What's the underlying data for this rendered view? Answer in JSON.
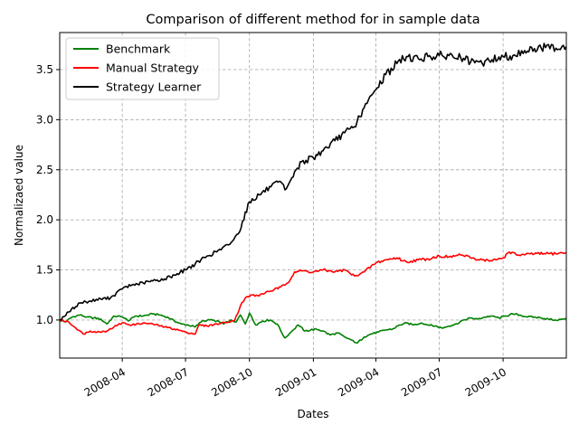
{
  "chart_data": {
    "type": "line",
    "title": "Comparison of different method for in sample data",
    "xlabel": "Dates",
    "ylabel": "Normalizaed value",
    "xlim": [
      "2008-01-02",
      "2009-12-31"
    ],
    "ylim": [
      0.62,
      3.87
    ],
    "x_ticks": [
      "2008-04",
      "2008-07",
      "2008-10",
      "2009-01",
      "2009-04",
      "2009-07",
      "2009-10"
    ],
    "y_ticks": [
      "1.0",
      "1.5",
      "2.0",
      "2.5",
      "3.0",
      "3.5"
    ],
    "grid": true,
    "legend_position": "upper-left",
    "series": [
      {
        "name": "Benchmark",
        "color": "#008000",
        "points": [
          [
            "2008-01-02",
            1.0
          ],
          [
            "2008-01-10",
            0.98
          ],
          [
            "2008-01-20",
            1.03
          ],
          [
            "2008-01-31",
            1.05
          ],
          [
            "2008-02-10",
            1.03
          ],
          [
            "2008-02-20",
            1.02
          ],
          [
            "2008-03-01",
            1.01
          ],
          [
            "2008-03-10",
            0.96
          ],
          [
            "2008-03-20",
            1.04
          ],
          [
            "2008-04-01",
            1.03
          ],
          [
            "2008-04-10",
            0.99
          ],
          [
            "2008-04-20",
            1.04
          ],
          [
            "2008-05-01",
            1.04
          ],
          [
            "2008-05-15",
            1.06
          ],
          [
            "2008-05-25",
            1.05
          ],
          [
            "2008-06-05",
            1.03
          ],
          [
            "2008-06-15",
            0.99
          ],
          [
            "2008-06-25",
            0.96
          ],
          [
            "2008-07-05",
            0.95
          ],
          [
            "2008-07-15",
            0.93
          ],
          [
            "2008-07-25",
            0.99
          ],
          [
            "2008-08-05",
            1.0
          ],
          [
            "2008-08-15",
            0.99
          ],
          [
            "2008-08-25",
            0.96
          ],
          [
            "2008-09-05",
            1.0
          ],
          [
            "2008-09-12",
            0.98
          ],
          [
            "2008-09-18",
            1.05
          ],
          [
            "2008-09-25",
            0.96
          ],
          [
            "2008-10-01",
            1.07
          ],
          [
            "2008-10-10",
            0.95
          ],
          [
            "2008-10-20",
            0.99
          ],
          [
            "2008-10-31",
            1.0
          ],
          [
            "2008-11-10",
            0.96
          ],
          [
            "2008-11-21",
            0.82
          ],
          [
            "2008-11-30",
            0.88
          ],
          [
            "2008-12-10",
            0.95
          ],
          [
            "2008-12-20",
            0.89
          ],
          [
            "2009-01-05",
            0.91
          ],
          [
            "2009-01-15",
            0.89
          ],
          [
            "2009-01-25",
            0.85
          ],
          [
            "2009-02-05",
            0.87
          ],
          [
            "2009-02-15",
            0.83
          ],
          [
            "2009-02-25",
            0.8
          ],
          [
            "2009-03-05",
            0.77
          ],
          [
            "2009-03-15",
            0.83
          ],
          [
            "2009-03-25",
            0.86
          ],
          [
            "2009-04-05",
            0.88
          ],
          [
            "2009-04-15",
            0.9
          ],
          [
            "2009-04-25",
            0.91
          ],
          [
            "2009-05-05",
            0.95
          ],
          [
            "2009-05-15",
            0.97
          ],
          [
            "2009-05-25",
            0.95
          ],
          [
            "2009-06-05",
            0.97
          ],
          [
            "2009-06-15",
            0.95
          ],
          [
            "2009-06-25",
            0.94
          ],
          [
            "2009-07-05",
            0.92
          ],
          [
            "2009-07-15",
            0.94
          ],
          [
            "2009-07-25",
            0.96
          ],
          [
            "2009-08-05",
            1.0
          ],
          [
            "2009-08-15",
            1.02
          ],
          [
            "2009-08-25",
            1.01
          ],
          [
            "2009-09-05",
            1.03
          ],
          [
            "2009-09-15",
            1.04
          ],
          [
            "2009-09-25",
            1.02
          ],
          [
            "2009-10-05",
            1.04
          ],
          [
            "2009-10-15",
            1.06
          ],
          [
            "2009-10-25",
            1.05
          ],
          [
            "2009-11-05",
            1.03
          ],
          [
            "2009-11-15",
            1.03
          ],
          [
            "2009-11-25",
            1.02
          ],
          [
            "2009-12-05",
            1.01
          ],
          [
            "2009-12-15",
            1.0
          ],
          [
            "2009-12-31",
            1.01
          ]
        ]
      },
      {
        "name": "Manual Strategy",
        "color": "#ff0000",
        "points": [
          [
            "2008-01-02",
            1.0
          ],
          [
            "2008-01-15",
            0.98
          ],
          [
            "2008-01-25",
            0.92
          ],
          [
            "2008-02-05",
            0.86
          ],
          [
            "2008-02-15",
            0.89
          ],
          [
            "2008-02-25",
            0.88
          ],
          [
            "2008-03-10",
            0.89
          ],
          [
            "2008-03-20",
            0.93
          ],
          [
            "2008-04-01",
            0.97
          ],
          [
            "2008-04-15",
            0.95
          ],
          [
            "2008-05-01",
            0.97
          ],
          [
            "2008-05-15",
            0.96
          ],
          [
            "2008-06-01",
            0.93
          ],
          [
            "2008-06-15",
            0.91
          ],
          [
            "2008-07-01",
            0.88
          ],
          [
            "2008-07-15",
            0.86
          ],
          [
            "2008-07-20",
            0.95
          ],
          [
            "2008-08-01",
            0.94
          ],
          [
            "2008-08-15",
            0.96
          ],
          [
            "2008-09-01",
            0.98
          ],
          [
            "2008-09-10",
            1.0
          ],
          [
            "2008-09-18",
            1.14
          ],
          [
            "2008-09-25",
            1.22
          ],
          [
            "2008-10-05",
            1.25
          ],
          [
            "2008-10-15",
            1.24
          ],
          [
            "2008-10-25",
            1.28
          ],
          [
            "2008-11-05",
            1.3
          ],
          [
            "2008-11-15",
            1.33
          ],
          [
            "2008-11-25",
            1.37
          ],
          [
            "2008-12-05",
            1.48
          ],
          [
            "2008-12-15",
            1.49
          ],
          [
            "2009-01-01",
            1.48
          ],
          [
            "2009-01-15",
            1.5
          ],
          [
            "2009-02-01",
            1.48
          ],
          [
            "2009-02-15",
            1.5
          ],
          [
            "2009-03-01",
            1.44
          ],
          [
            "2009-03-15",
            1.48
          ],
          [
            "2009-04-01",
            1.57
          ],
          [
            "2009-04-15",
            1.6
          ],
          [
            "2009-05-01",
            1.62
          ],
          [
            "2009-05-15",
            1.58
          ],
          [
            "2009-06-01",
            1.6
          ],
          [
            "2009-06-15",
            1.61
          ],
          [
            "2009-07-01",
            1.64
          ],
          [
            "2009-07-15",
            1.63
          ],
          [
            "2009-08-01",
            1.65
          ],
          [
            "2009-08-15",
            1.62
          ],
          [
            "2009-09-01",
            1.6
          ],
          [
            "2009-09-15",
            1.59
          ],
          [
            "2009-10-01",
            1.62
          ],
          [
            "2009-10-10",
            1.68
          ],
          [
            "2009-10-20",
            1.65
          ],
          [
            "2009-11-01",
            1.65
          ],
          [
            "2009-11-15",
            1.66
          ],
          [
            "2009-12-01",
            1.66
          ],
          [
            "2009-12-31",
            1.67
          ]
        ]
      },
      {
        "name": "Strategy Learner",
        "color": "#000000",
        "points": [
          [
            "2008-01-02",
            1.0
          ],
          [
            "2008-01-15",
            1.08
          ],
          [
            "2008-01-31",
            1.17
          ],
          [
            "2008-02-15",
            1.19
          ],
          [
            "2008-03-01",
            1.21
          ],
          [
            "2008-03-15",
            1.22
          ],
          [
            "2008-04-01",
            1.31
          ],
          [
            "2008-04-15",
            1.35
          ],
          [
            "2008-05-01",
            1.37
          ],
          [
            "2008-05-15",
            1.39
          ],
          [
            "2008-06-01",
            1.41
          ],
          [
            "2008-06-15",
            1.45
          ],
          [
            "2008-07-01",
            1.5
          ],
          [
            "2008-07-15",
            1.56
          ],
          [
            "2008-08-01",
            1.64
          ],
          [
            "2008-08-15",
            1.68
          ],
          [
            "2008-09-01",
            1.75
          ],
          [
            "2008-09-15",
            1.86
          ],
          [
            "2008-10-01",
            2.18
          ],
          [
            "2008-10-15",
            2.25
          ],
          [
            "2008-11-01",
            2.33
          ],
          [
            "2008-11-15",
            2.38
          ],
          [
            "2008-11-21",
            2.3
          ],
          [
            "2008-12-01",
            2.42
          ],
          [
            "2008-12-15",
            2.58
          ],
          [
            "2009-01-01",
            2.62
          ],
          [
            "2009-01-15",
            2.69
          ],
          [
            "2009-02-01",
            2.79
          ],
          [
            "2009-02-15",
            2.87
          ],
          [
            "2009-03-01",
            2.93
          ],
          [
            "2009-03-15",
            3.12
          ],
          [
            "2009-04-01",
            3.3
          ],
          [
            "2009-04-15",
            3.45
          ],
          [
            "2009-05-01",
            3.56
          ],
          [
            "2009-05-15",
            3.63
          ],
          [
            "2009-06-01",
            3.61
          ],
          [
            "2009-06-15",
            3.63
          ],
          [
            "2009-07-01",
            3.64
          ],
          [
            "2009-07-15",
            3.64
          ],
          [
            "2009-08-01",
            3.62
          ],
          [
            "2009-08-15",
            3.57
          ],
          [
            "2009-09-01",
            3.56
          ],
          [
            "2009-09-15",
            3.6
          ],
          [
            "2009-10-01",
            3.63
          ],
          [
            "2009-10-15",
            3.64
          ],
          [
            "2009-11-01",
            3.69
          ],
          [
            "2009-11-15",
            3.71
          ],
          [
            "2009-12-01",
            3.72
          ],
          [
            "2009-12-31",
            3.73
          ]
        ]
      }
    ]
  }
}
